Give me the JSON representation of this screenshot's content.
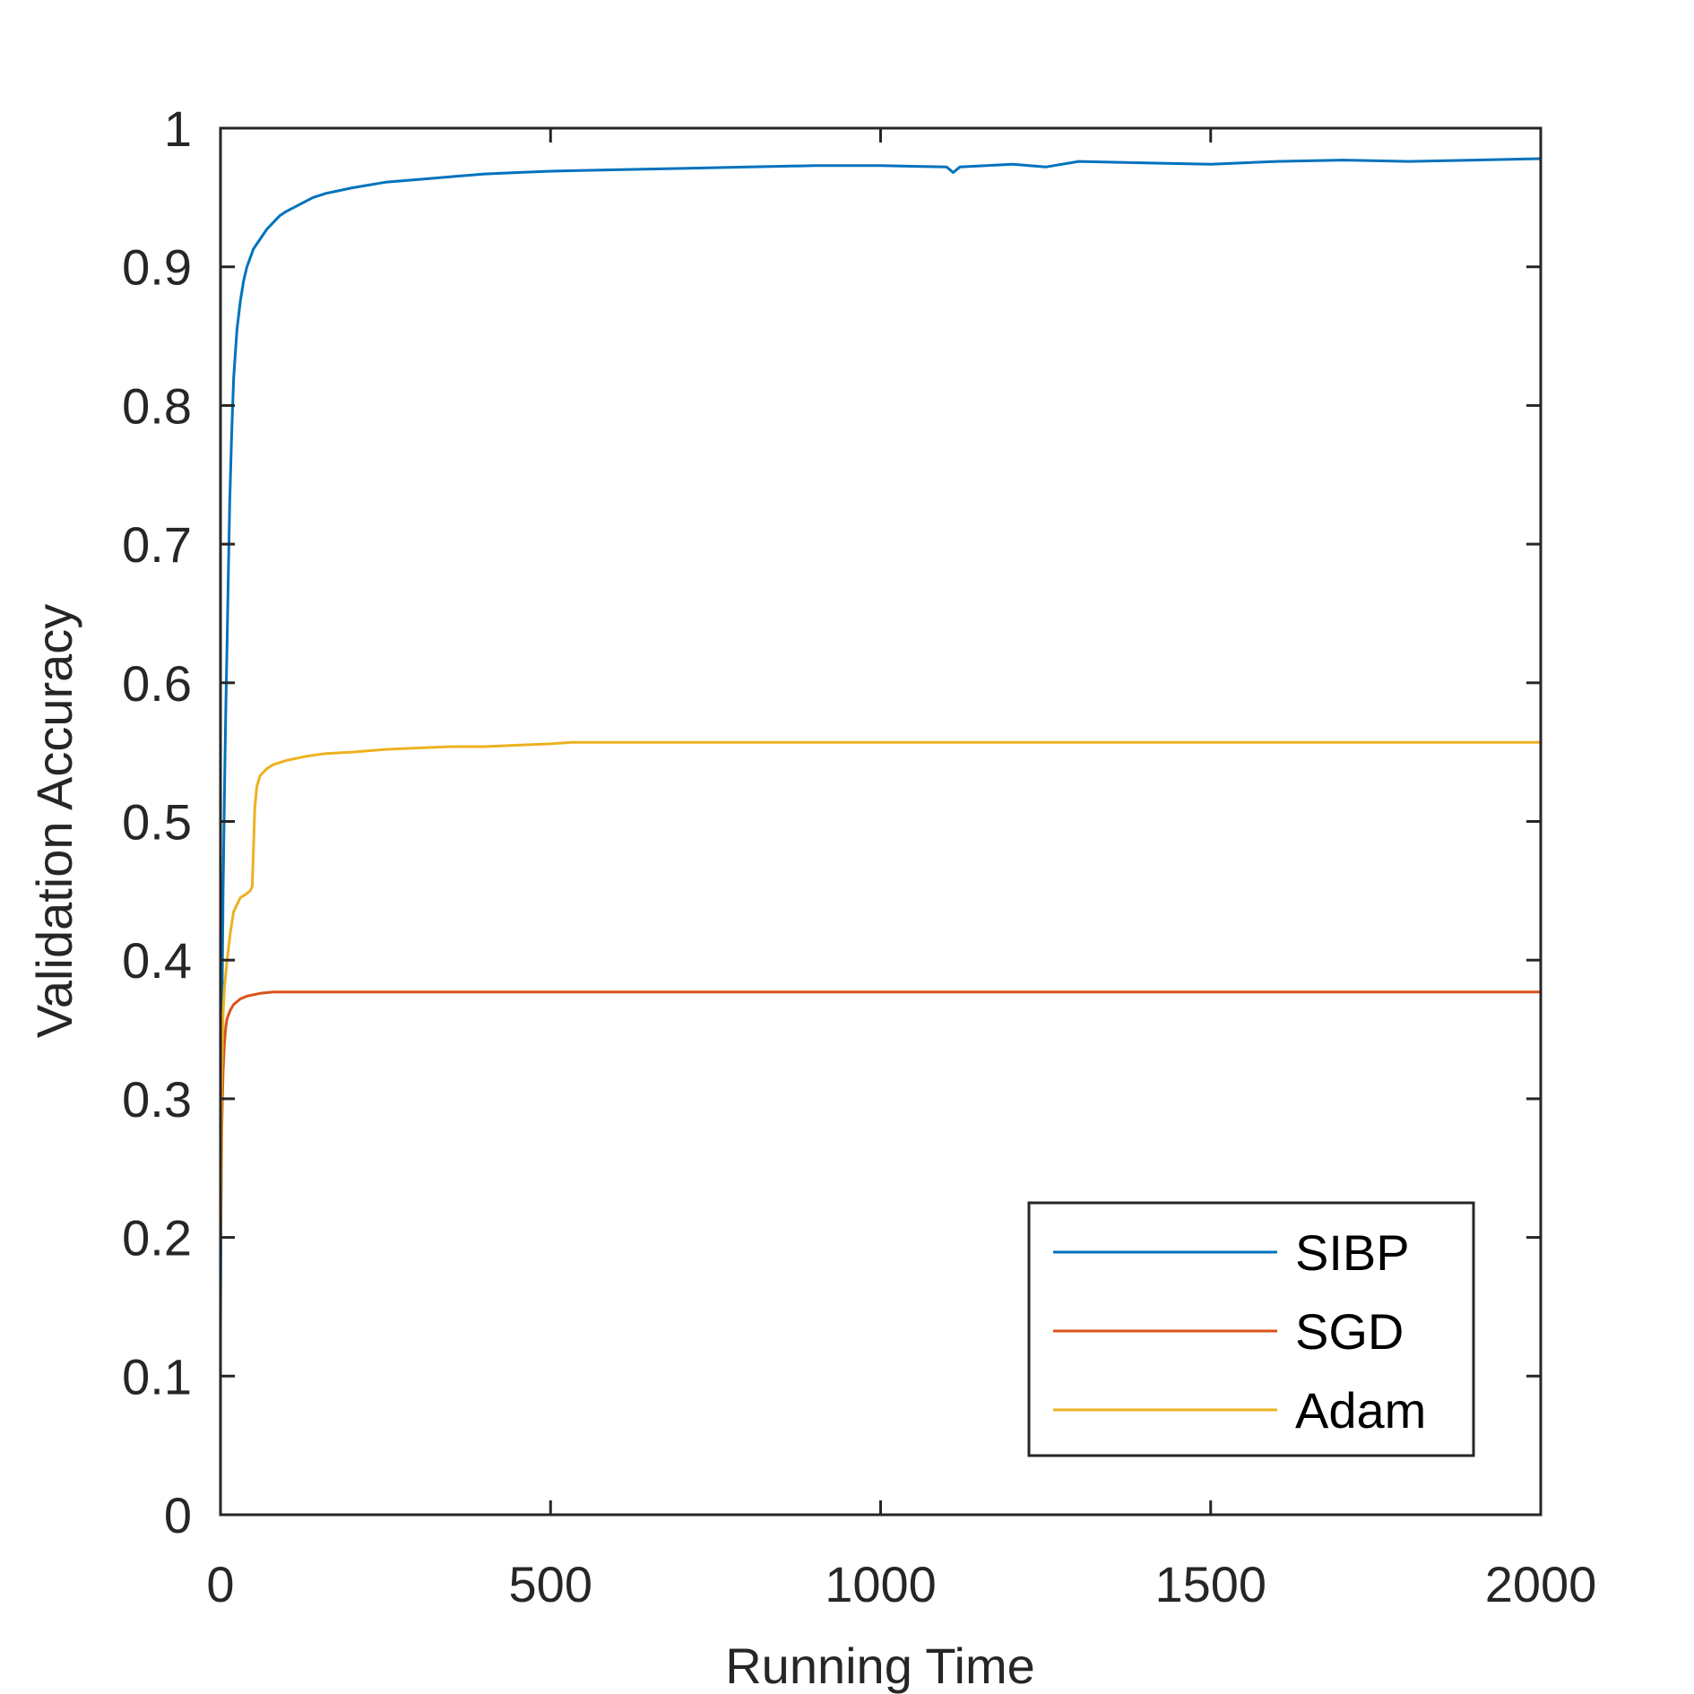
{
  "chart_data": {
    "type": "line",
    "title": "",
    "xlabel": "Running Time",
    "ylabel": "Validation Accuracy",
    "xlim": [
      0,
      2000
    ],
    "ylim": [
      0,
      1
    ],
    "xticks": [
      "0",
      "500",
      "1000",
      "1500",
      "2000"
    ],
    "yticks": [
      "0",
      "0.1",
      "0.2",
      "0.3",
      "0.4",
      "0.5",
      "0.6",
      "0.7",
      "0.8",
      "0.9",
      "1"
    ],
    "grid": false,
    "legend_position": "bottom-right",
    "series": [
      {
        "name": "SIBP",
        "color": "#0072BD",
        "x": [
          0,
          2,
          4,
          6,
          8,
          10,
          12,
          14,
          17,
          20,
          25,
          30,
          35,
          40,
          50,
          60,
          70,
          80,
          90,
          100,
          120,
          140,
          160,
          180,
          200,
          250,
          300,
          350,
          400,
          450,
          500,
          600,
          700,
          800,
          900,
          1000,
          1100,
          1110,
          1120,
          1200,
          1250,
          1300,
          1400,
          1500,
          1600,
          1700,
          1800,
          1900,
          2000
        ],
        "y": [
          0.13,
          0.35,
          0.45,
          0.52,
          0.58,
          0.63,
          0.68,
          0.73,
          0.78,
          0.82,
          0.855,
          0.875,
          0.89,
          0.9,
          0.913,
          0.92,
          0.927,
          0.932,
          0.937,
          0.94,
          0.945,
          0.95,
          0.953,
          0.955,
          0.957,
          0.961,
          0.963,
          0.965,
          0.967,
          0.968,
          0.969,
          0.97,
          0.971,
          0.972,
          0.973,
          0.973,
          0.972,
          0.968,
          0.972,
          0.974,
          0.972,
          0.976,
          0.975,
          0.974,
          0.976,
          0.977,
          0.976,
          0.977,
          0.978
        ]
      },
      {
        "name": "SGD",
        "color": "#D95319",
        "x": [
          0,
          2,
          4,
          6,
          8,
          10,
          15,
          20,
          25,
          30,
          40,
          50,
          60,
          80,
          100,
          150,
          200,
          500,
          1000,
          1500,
          2000
        ],
        "y": [
          0.19,
          0.28,
          0.32,
          0.34,
          0.352,
          0.358,
          0.364,
          0.368,
          0.37,
          0.372,
          0.374,
          0.375,
          0.376,
          0.377,
          0.377,
          0.377,
          0.377,
          0.377,
          0.377,
          0.377,
          0.377
        ]
      },
      {
        "name": "Adam",
        "color": "#EDB120",
        "x": [
          0,
          2,
          4,
          6,
          8,
          10,
          15,
          20,
          25,
          30,
          40,
          45,
          48,
          50,
          52,
          55,
          60,
          70,
          80,
          100,
          130,
          160,
          200,
          250,
          300,
          350,
          400,
          450,
          500,
          530,
          560,
          700,
          1000,
          1500,
          2000
        ],
        "y": [
          0.2,
          0.32,
          0.36,
          0.38,
          0.39,
          0.4,
          0.42,
          0.435,
          0.44,
          0.445,
          0.448,
          0.45,
          0.453,
          0.48,
          0.51,
          0.525,
          0.533,
          0.538,
          0.541,
          0.544,
          0.547,
          0.549,
          0.55,
          0.552,
          0.553,
          0.554,
          0.554,
          0.555,
          0.556,
          0.557,
          0.557,
          0.557,
          0.557,
          0.557,
          0.557
        ]
      }
    ]
  }
}
